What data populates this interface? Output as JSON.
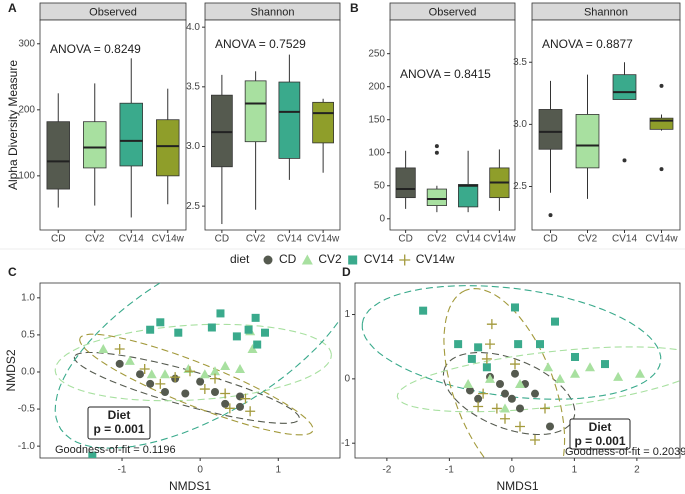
{
  "panel_labels": [
    "A",
    "B",
    "C",
    "D"
  ],
  "legend": {
    "title": "diet"
  },
  "chart_data": [
    {
      "type": "box",
      "title": "Observed",
      "ylabel": "Alpha Diversity Measure",
      "annotation": "ANOVA = 0.8249",
      "categories": [
        "CD",
        "CV2",
        "CV14",
        "CV14w"
      ],
      "colors": [
        "#555a4f",
        "#a8e0a0",
        "#3aaa8c",
        "#8f9e2a"
      ],
      "boxes": [
        {
          "min": 52,
          "q1": 80,
          "median": 122,
          "q3": 182,
          "max": 225,
          "outliers": []
        },
        {
          "min": 55,
          "q1": 112,
          "median": 143,
          "q3": 182,
          "max": 240,
          "outliers": []
        },
        {
          "min": 37,
          "q1": 115,
          "median": 153,
          "q3": 210,
          "max": 278,
          "outliers": []
        },
        {
          "min": 57,
          "q1": 100,
          "median": 145,
          "q3": 185,
          "max": 232,
          "outliers": []
        }
      ],
      "ylim": [
        18,
        336
      ],
      "yticks": [
        100,
        200,
        300
      ]
    },
    {
      "type": "box",
      "title": "Shannon",
      "annotation": "ANOVA = 0.7529",
      "categories": [
        "CD",
        "CV2",
        "CV14",
        "CV14w"
      ],
      "colors": [
        "#555a4f",
        "#a8e0a0",
        "#3aaa8c",
        "#8f9e2a"
      ],
      "boxes": [
        {
          "min": 2.35,
          "q1": 2.83,
          "median": 3.12,
          "q3": 3.43,
          "max": 3.6,
          "outliers": []
        },
        {
          "min": 2.47,
          "q1": 3.04,
          "median": 3.36,
          "q3": 3.55,
          "max": 3.63,
          "outliers": []
        },
        {
          "min": 2.72,
          "q1": 2.9,
          "median": 3.29,
          "q3": 3.54,
          "max": 3.77,
          "outliers": []
        },
        {
          "min": 2.78,
          "q1": 3.03,
          "median": 3.28,
          "q3": 3.37,
          "max": 3.4,
          "outliers": []
        }
      ],
      "ylim": [
        2.3,
        4.06
      ],
      "yticks": [
        2.5,
        {
          "value": 3,
          "label": "3.0"
        },
        3.5,
        {
          "value": 4,
          "label": "4.0"
        }
      ]
    },
    {
      "type": "box",
      "title": "Observed",
      "annotation": "ANOVA = 0.8415",
      "categories": [
        "CD",
        "CV2",
        "CV14",
        "CV14w"
      ],
      "colors": [
        "#555a4f",
        "#a8e0a0",
        "#3aaa8c",
        "#8f9e2a"
      ],
      "boxes": [
        {
          "min": 15,
          "q1": 32,
          "median": 45,
          "q3": 77,
          "max": 103,
          "outliers": []
        },
        {
          "min": 10,
          "q1": 20,
          "median": 30,
          "q3": 45,
          "max": 50,
          "outliers": [
            100,
            110
          ]
        },
        {
          "min": 10,
          "q1": 18,
          "median": 50,
          "q3": 52,
          "max": 103,
          "outliers": []
        },
        {
          "min": 12,
          "q1": 32,
          "median": 55,
          "q3": 77,
          "max": 105,
          "outliers": []
        }
      ],
      "ylim": [
        -17,
        301
      ],
      "yticks": [
        0,
        50,
        100,
        150,
        200,
        250
      ]
    },
    {
      "type": "box",
      "title": "Shannon",
      "annotation": "ANOVA = 0.8877",
      "categories": [
        "CD",
        "CV2",
        "CV14",
        "CV14w"
      ],
      "colors": [
        "#555a4f",
        "#a8e0a0",
        "#3aaa8c",
        "#8f9e2a"
      ],
      "boxes": [
        {
          "min": 2.45,
          "q1": 2.8,
          "median": 2.94,
          "q3": 3.12,
          "max": 3.35,
          "outliers": [
            2.27
          ]
        },
        {
          "min": 2.4,
          "q1": 2.65,
          "median": 2.83,
          "q3": 3.08,
          "max": 3.4,
          "outliers": []
        },
        {
          "min": 3.2,
          "q1": 3.2,
          "median": 3.26,
          "q3": 3.4,
          "max": 3.5,
          "outliers": [
            2.71
          ]
        },
        {
          "min": 2.95,
          "q1": 2.96,
          "median": 3.03,
          "q3": 3.05,
          "max": 3.08,
          "outliers": [
            3.31,
            2.64
          ]
        }
      ],
      "ylim": [
        2.15,
        3.84
      ],
      "yticks": [
        2.5,
        {
          "value": 3,
          "label": "3.0"
        },
        3.5
      ]
    },
    {
      "type": "scatter",
      "xlabel": "NMDS1",
      "ylabel": "NMDS2",
      "test_label": "Diet",
      "p_label": "p = 0.001",
      "fit_label": "Goodness-of-fit = 0.1196",
      "xlim": [
        -2.05,
        1.79
      ],
      "ylim": [
        -1.16,
        1.2
      ],
      "xticks": [
        -1,
        0,
        1
      ],
      "yticks": [
        {
          "value": 1,
          "label": "1.0"
        },
        0.5,
        {
          "value": 0,
          "label": "0.0"
        },
        -0.5,
        {
          "value": -1,
          "label": "-1.0"
        }
      ],
      "series": [
        {
          "name": "CD",
          "color": "#555a4f",
          "marker": "circle",
          "x": [
            -1.03,
            -0.77,
            -0.64,
            -0.45,
            -0.32,
            -0.19,
            0,
            0.19,
            0.32,
            0.51,
            0.51
          ],
          "y": [
            0.11,
            -0.03,
            -0.16,
            -0.27,
            -0.09,
            -0.29,
            -0.13,
            -0.27,
            -0.43,
            -0.47,
            -0.33
          ]
        },
        {
          "name": "CV2",
          "color": "#a8e0a0",
          "marker": "triangle",
          "x": [
            -1.24,
            -0.9,
            -0.62,
            -0.45,
            -0.15,
            0.06,
            0.19,
            0.32,
            0.51,
            0.64,
            0.67
          ],
          "y": [
            0.31,
            0.15,
            -0.03,
            -0.03,
            0.04,
            -0.03,
            0.01,
            0.08,
            0.04,
            0.55,
            0.31
          ]
        },
        {
          "name": "CV14",
          "color": "#3aaa8c",
          "marker": "square",
          "x": [
            -0.64,
            -0.51,
            -0.28,
            0.15,
            0.26,
            0.47,
            0.62,
            0.73,
            0.83,
            0.71,
            -1.38
          ],
          "y": [
            0.57,
            0.67,
            0.53,
            0.6,
            0.79,
            0.48,
            0.57,
            0.37,
            0.53,
            0.73,
            -1.13
          ]
        },
        {
          "name": "CV14w",
          "color": "#a39a3c",
          "marker": "plus",
          "x": [
            -1.03,
            -0.71,
            -0.51,
            -0.32,
            -0.13,
            0.06,
            0.19,
            0.32,
            0.38,
            0.58,
            0.64
          ],
          "y": [
            0.31,
            0.04,
            -0.16,
            -0.07,
            0.01,
            -0.23,
            -0.09,
            -0.29,
            -0.49,
            -0.36,
            -0.53
          ]
        }
      ]
    },
    {
      "type": "scatter",
      "xlabel": "NMDS1",
      "test_label": "Diet",
      "p_label": "p = 0.001",
      "fit_label": "Goodness-of-fit = 0.2039",
      "xlim": [
        -2.51,
        2.69
      ],
      "ylim": [
        -1.23,
        1.49
      ],
      "xticks": [
        -2,
        -1,
        0,
        1,
        2
      ],
      "yticks": [
        -1,
        0,
        1
      ],
      "series": [
        {
          "name": "CD",
          "color": "#555a4f",
          "marker": "circle",
          "x": [
            -0.67,
            -0.54,
            -0.35,
            -0.19,
            -0.11,
            0,
            0.05,
            0.21,
            0.13,
            0.37,
            0.61
          ],
          "y": [
            -0.18,
            -0.31,
            0.03,
            -0.08,
            -0.23,
            -0.31,
            0.08,
            -0.08,
            -0.46,
            -0.23,
            -0.74
          ]
        },
        {
          "name": "CV2",
          "color": "#a8e0a0",
          "marker": "triangle",
          "x": [
            -0.7,
            -0.35,
            0.13,
            0.77,
            1.01,
            1.25,
            1.7,
            2.05,
            0.58,
            -0.11
          ],
          "y": [
            -0.08,
            0,
            -0.08,
            0,
            0.08,
            0.18,
            0.03,
            0.08,
            0.18,
            -0.46
          ]
        },
        {
          "name": "CV14",
          "color": "#3aaa8c",
          "marker": "square",
          "x": [
            -1.42,
            0.05,
            0.69,
            -0.86,
            -0.54,
            0.1,
            0.45,
            1.01,
            1.49,
            -0.64,
            -0.4
          ],
          "y": [
            1.06,
            1.11,
            0.89,
            0.54,
            0.49,
            0.54,
            0.54,
            0.34,
            0.23,
            0.31,
            0.18
          ]
        },
        {
          "name": "CV14w",
          "color": "#a39a3c",
          "marker": "plus",
          "x": [
            -0.32,
            -0.35,
            -0.4,
            -0.46,
            -0.54,
            -0.24,
            -0.11,
            0.05,
            0.13,
            0.37,
            0.53
          ],
          "y": [
            0.85,
            0.54,
            0.31,
            -0.23,
            -0.43,
            -0.46,
            -0.62,
            0.23,
            -0.74,
            -0.95,
            -0.46
          ]
        }
      ]
    }
  ]
}
